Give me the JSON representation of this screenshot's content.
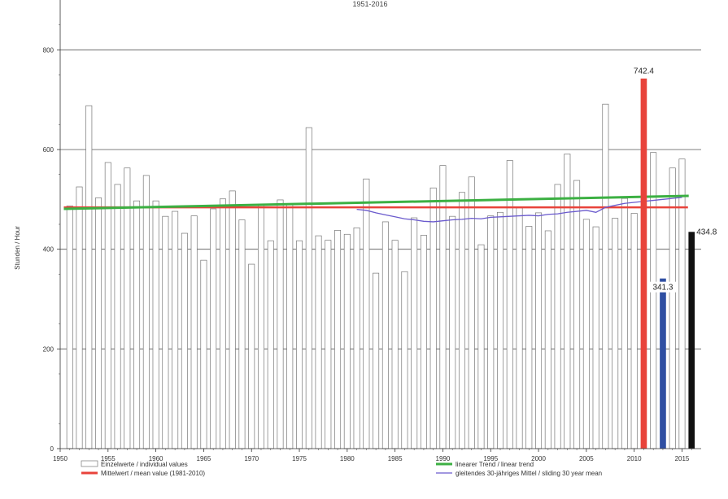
{
  "chart_data": {
    "type": "bar",
    "title": "",
    "subtitle": "1951-2016",
    "xlabel": "",
    "ylabel": "Stunden / Hour",
    "xlim": [
      1950,
      2017
    ],
    "ylim": [
      0,
      900
    ],
    "x_ticks": [
      1950,
      1955,
      1960,
      1965,
      1970,
      1975,
      1980,
      1985,
      1990,
      1995,
      2000,
      2005,
      2010,
      2015
    ],
    "y_ticks": [
      0,
      200,
      400,
      600,
      800
    ],
    "grid": true,
    "legend_position": "bottom",
    "series": [
      {
        "name": "Einzelwerte / individual values",
        "kind": "bar",
        "color": "#ffffff",
        "x": [
          1951,
          1952,
          1953,
          1954,
          1955,
          1956,
          1957,
          1958,
          1959,
          1960,
          1961,
          1962,
          1963,
          1964,
          1965,
          1966,
          1967,
          1968,
          1969,
          1970,
          1971,
          1972,
          1973,
          1974,
          1975,
          1976,
          1977,
          1978,
          1979,
          1980,
          1981,
          1982,
          1983,
          1984,
          1985,
          1986,
          1987,
          1988,
          1989,
          1990,
          1991,
          1992,
          1993,
          1994,
          1995,
          1996,
          1997,
          1998,
          1999,
          2000,
          2001,
          2002,
          2003,
          2004,
          2005,
          2006,
          2007,
          2008,
          2009,
          2010,
          2011,
          2012,
          2013,
          2014,
          2015
        ],
        "values": [
          487,
          525,
          688,
          503,
          574,
          530,
          563,
          497,
          548,
          497,
          466,
          476,
          432,
          467,
          378,
          481,
          501,
          517,
          459,
          370,
          490,
          417,
          499,
          490,
          417,
          644,
          427,
          418,
          438,
          430,
          443,
          541,
          352,
          455,
          418,
          355,
          463,
          428,
          523,
          568,
          466,
          514,
          545,
          409,
          467,
          474,
          578,
          483,
          446,
          473,
          437,
          530,
          591,
          538,
          460,
          445,
          691,
          462,
          502,
          472,
          742.4,
          594,
          341.3,
          563,
          581
        ]
      },
      {
        "name": "Mittelwert / mean value (1981-2010)",
        "kind": "hline",
        "color": "#e8433b",
        "value": 484
      },
      {
        "name": "linearer Trend / linear trend",
        "kind": "line",
        "color": "#3cb043",
        "x": [
          1951,
          2016
        ],
        "values": [
          481,
          507
        ]
      },
      {
        "name": "gleitendes 30-jähriges Mittel / sliding 30 year mean",
        "kind": "line",
        "color": "#6a5acd",
        "x": [
          1981,
          1982,
          1983,
          1984,
          1985,
          1986,
          1987,
          1988,
          1989,
          1990,
          1991,
          1992,
          1993,
          1994,
          1995,
          1996,
          1997,
          1998,
          1999,
          2000,
          2001,
          2002,
          2003,
          2004,
          2005,
          2006,
          2007,
          2008,
          2009,
          2010,
          2011,
          2012,
          2013,
          2014,
          2015
        ],
        "values": [
          480,
          478,
          473,
          469,
          465,
          461,
          459,
          456,
          455,
          457,
          459,
          460,
          462,
          461,
          464,
          465,
          466,
          467,
          468,
          467,
          470,
          471,
          474,
          476,
          478,
          474,
          484,
          488,
          492,
          494,
          496,
          498,
          500,
          502,
          504
        ]
      }
    ],
    "highlights": [
      {
        "x": 2011,
        "value": 742.4,
        "label": "742.4",
        "color": "#e8433b"
      },
      {
        "x": 2013,
        "value": 341.3,
        "label": "341.3",
        "color": "#2f4fa2"
      },
      {
        "x": 2016,
        "value": 434.8,
        "label": "434.8",
        "color": "#111111"
      }
    ]
  }
}
